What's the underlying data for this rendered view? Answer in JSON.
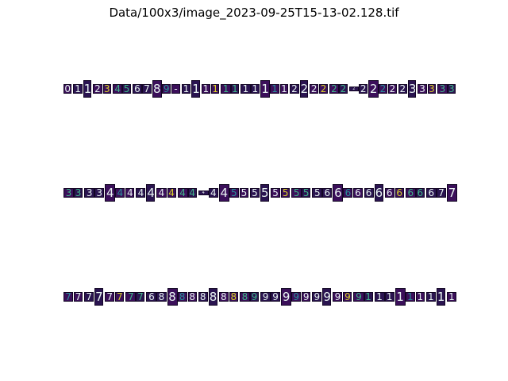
{
  "title": "Data/100x3/image_2023-09-25T15-13-02.128.tif",
  "colors": {
    "background": "#ffffff",
    "tile_bg": "#3b0f5a",
    "tile_bg_alt": "#2a1450",
    "glyph_main": "#e8f4f2",
    "glyph_accent": "#3fb58a",
    "glyph_teal": "#2a8f9a",
    "glyph_yellow": "#d8d228",
    "border": "#120524"
  },
  "strips": [
    {
      "name": "row-1",
      "glyphs": [
        "0",
        "1",
        "1",
        "2",
        "3",
        "4",
        "5",
        "6",
        "7",
        "8",
        "9",
        "-",
        "1",
        "1",
        "1",
        "1",
        "1",
        "1",
        "1",
        "1",
        "1",
        "1",
        "1",
        "2",
        "2",
        "2",
        "2",
        "2",
        "2",
        "2",
        "2",
        "2",
        "2",
        "2",
        "2",
        "3",
        "3",
        "3",
        "3",
        "3"
      ]
    },
    {
      "name": "row-2",
      "glyphs": [
        "3",
        "3",
        "3",
        "3",
        "4",
        "4",
        "4",
        "4",
        "4",
        "4",
        "4",
        "4",
        "4",
        "4",
        "4",
        "4",
        "5",
        "5",
        "5",
        "5",
        "5",
        "5",
        "5",
        "5",
        "5",
        "6",
        "6",
        "6",
        "6",
        "6",
        "6",
        "6",
        "6",
        "6",
        "6",
        "6",
        "7",
        "7"
      ]
    },
    {
      "name": "row-3",
      "glyphs": [
        "7",
        "7",
        "7",
        "7",
        "7",
        "7",
        "7",
        "7",
        "6",
        "8",
        "8",
        "8",
        "8",
        "8",
        "8",
        "8",
        "8",
        "8",
        "9",
        "9",
        "9",
        "9",
        "9",
        "9",
        "9",
        "9",
        "9",
        "9",
        "9",
        "1",
        "1",
        "1",
        "1",
        "1",
        "1",
        "1",
        "1",
        "1"
      ]
    }
  ]
}
